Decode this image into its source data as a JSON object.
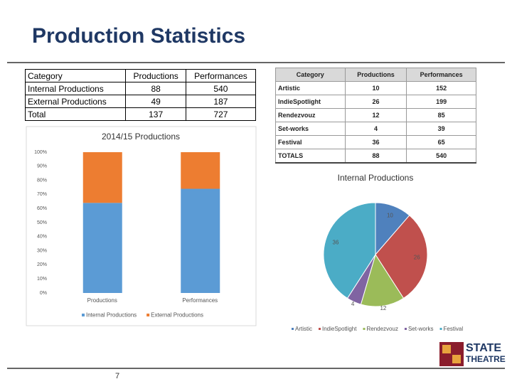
{
  "header": {
    "title": "Production Statistics"
  },
  "table1": {
    "columns": [
      "Category",
      "Productions",
      "Performances"
    ],
    "rows": [
      [
        "Internal Productions",
        "88",
        "540"
      ],
      [
        "External Productions",
        "49",
        "187"
      ],
      [
        "Total",
        "137",
        "727"
      ]
    ]
  },
  "table2": {
    "columns": [
      "Category",
      "Productions",
      "Performances"
    ],
    "rows": [
      [
        "Artistic",
        "10",
        "152"
      ],
      [
        "IndieSpotlight",
        "26",
        "199"
      ],
      [
        "Rendezvouz",
        "12",
        "85"
      ],
      [
        "Set-works",
        "4",
        "39"
      ],
      [
        "Festival",
        "36",
        "65"
      ],
      [
        "TOTALS",
        "88",
        "540"
      ]
    ]
  },
  "chart_data": [
    {
      "type": "bar",
      "stacked": true,
      "title": "2014/15 Productions",
      "categories": [
        "Productions",
        "Performances"
      ],
      "series": [
        {
          "name": "Internal Productions",
          "color": "#5b9bd5",
          "values": [
            64,
            74
          ]
        },
        {
          "name": "External Productions",
          "color": "#ed7d31",
          "values": [
            36,
            26
          ]
        }
      ],
      "ylim": [
        0,
        100
      ],
      "yticks": [
        {
          "value": 0,
          "label": "0%"
        },
        {
          "value": 10,
          "label": "10%"
        },
        {
          "value": 20,
          "label": "20%"
        },
        {
          "value": 30,
          "label": "30%"
        },
        {
          "value": 40,
          "label": "40%"
        },
        {
          "value": 50,
          "label": "50%"
        },
        {
          "value": 60,
          "label": "60%"
        },
        {
          "value": 70,
          "label": "70%"
        },
        {
          "value": 80,
          "label": "80%"
        },
        {
          "value": 90,
          "label": "90%"
        },
        {
          "value": 100,
          "label": "100%"
        }
      ],
      "legend": "bottom"
    },
    {
      "type": "pie",
      "title": "Internal Productions",
      "categories": [
        "Artistic",
        "IndieSpotlight",
        "Rendezvouz",
        "Set-works",
        "Festival"
      ],
      "values": [
        10,
        26,
        12,
        4,
        36
      ],
      "colors": [
        "#4f81bd",
        "#c0504d",
        "#9bbb59",
        "#8064a2",
        "#4bacc6"
      ],
      "legend": "bottom"
    }
  ],
  "page_number": "7",
  "logo": {
    "lines": [
      "STATE",
      "THEATRE"
    ]
  }
}
